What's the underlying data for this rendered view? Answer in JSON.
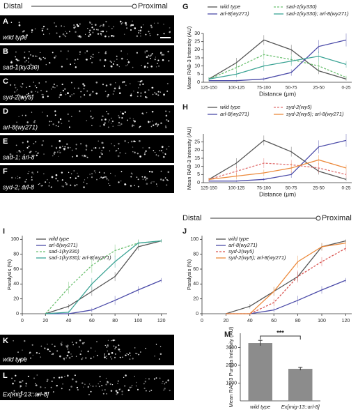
{
  "top_scale": {
    "distal": "Distal",
    "proximal": "Proximal"
  },
  "micrographs": [
    {
      "letter": "A",
      "label": "wild type"
    },
    {
      "letter": "B",
      "label": "sad-1(ky330)"
    },
    {
      "letter": "C",
      "label": "syd-2(wy5)"
    },
    {
      "letter": "D",
      "label": "arl-8(wy271)"
    },
    {
      "letter": "E",
      "label": "sad-1; arl-8"
    },
    {
      "letter": "F",
      "label": "syd-2; arl-8"
    },
    {
      "letter": "K",
      "label": "wild type"
    },
    {
      "letter": "L",
      "label": "Ex[mig-13::arl-8]"
    }
  ],
  "bottom_scale": {
    "distal": "Distal",
    "proximal": "Proximal"
  },
  "chart_data": [
    {
      "type": "line",
      "panel": "G",
      "y_label": "Mean RAB-3 Intensity (AU)",
      "x_label": "Distance (μm)",
      "categories": [
        "125-150",
        "100-125",
        "75-100",
        "50-75",
        "25-50",
        "0-25"
      ],
      "ylim": [
        0,
        30
      ],
      "yticks": [
        0,
        5,
        10,
        15,
        20,
        25,
        30
      ],
      "series": [
        {
          "name": "wild type",
          "color": "#555555",
          "style": "solid",
          "values": [
            2,
            12,
            26,
            20,
            7,
            2
          ],
          "errors": [
            1,
            3,
            3,
            3,
            2,
            1
          ]
        },
        {
          "name": "sad-1(ky330)",
          "color": "#6cc070",
          "style": "dashed",
          "values": [
            2,
            9,
            17,
            14,
            10,
            3
          ],
          "errors": [
            1,
            3,
            3,
            3,
            3,
            1
          ]
        },
        {
          "name": "arl-8(wy271)",
          "color": "#4a4aa8",
          "style": "solid",
          "values": [
            1,
            1,
            2,
            6,
            22,
            26
          ],
          "errors": [
            0.5,
            0.5,
            1,
            2,
            4,
            4
          ]
        },
        {
          "name": "sad-1(ky330); arl-8(wy271)",
          "color": "#3aa394",
          "style": "solid",
          "values": [
            2,
            5,
            10,
            13,
            16,
            11
          ],
          "errors": [
            1,
            2,
            3,
            3,
            3,
            2
          ]
        }
      ]
    },
    {
      "type": "line",
      "panel": "H",
      "y_label": "Mean RAB-3 Intensity (AU)",
      "x_label": "Distance (μm)",
      "categories": [
        "125-150",
        "100-125",
        "75-100",
        "50-75",
        "25-50",
        "0-25"
      ],
      "ylim": [
        0,
        30
      ],
      "yticks": [
        0,
        5,
        10,
        15,
        20,
        25
      ],
      "series": [
        {
          "name": "wild type",
          "color": "#555555",
          "style": "solid",
          "values": [
            2,
            12,
            26,
            19,
            7,
            2
          ],
          "errors": [
            1,
            3,
            3,
            3,
            2,
            1
          ]
        },
        {
          "name": "syd-2(wy5)",
          "color": "#e07070",
          "style": "dashed",
          "values": [
            2,
            7,
            12,
            11,
            9,
            5
          ],
          "errors": [
            1,
            3,
            3,
            3,
            3,
            2
          ]
        },
        {
          "name": "arl-8(wy271)",
          "color": "#4a4aa8",
          "style": "solid",
          "values": [
            1,
            1,
            2,
            5,
            22,
            26
          ],
          "errors": [
            0.5,
            0.5,
            1,
            2,
            4,
            4
          ]
        },
        {
          "name": "syd-2(wy5); arl-8(wy271)",
          "color": "#ec8a3c",
          "style": "solid",
          "values": [
            2,
            4,
            6,
            9,
            14,
            9
          ],
          "errors": [
            1,
            2,
            2,
            3,
            3,
            2
          ]
        }
      ]
    },
    {
      "type": "line",
      "panel": "I",
      "y_label": "Paralysis (%)",
      "x": [
        20,
        40,
        60,
        80,
        100,
        120
      ],
      "xlim": [
        0,
        125
      ],
      "xticks": [
        0,
        20,
        40,
        60,
        80,
        100,
        120
      ],
      "ylim": [
        0,
        105
      ],
      "yticks": [
        0,
        20,
        40,
        60,
        80,
        100
      ],
      "series": [
        {
          "name": "wild type",
          "color": "#555555",
          "style": "solid",
          "values": [
            0,
            10,
            30,
            50,
            90,
            98
          ],
          "errors": [
            0,
            3,
            6,
            6,
            5,
            2
          ]
        },
        {
          "name": "arl-8(wy271)",
          "color": "#4a4aa8",
          "style": "solid",
          "values": [
            0,
            0,
            5,
            18,
            32,
            45
          ],
          "errors": [
            0,
            0,
            3,
            6,
            5,
            3
          ]
        },
        {
          "name": "sad-1(ky330)",
          "color": "#6cc070",
          "style": "dashed",
          "values": [
            0,
            35,
            65,
            85,
            95,
            98
          ],
          "errors": [
            0,
            8,
            10,
            8,
            5,
            2
          ]
        },
        {
          "name": "sad-1(ky330); arl-8(wy271)",
          "color": "#3aa394",
          "style": "solid",
          "values": [
            0,
            2,
            40,
            70,
            95,
            98
          ],
          "errors": [
            0,
            2,
            8,
            8,
            4,
            2
          ]
        }
      ]
    },
    {
      "type": "line",
      "panel": "J",
      "y_label": "Paralysis (%)",
      "x": [
        20,
        40,
        60,
        80,
        100,
        120
      ],
      "xlim": [
        0,
        125
      ],
      "xticks": [
        0,
        20,
        40,
        60,
        80,
        100,
        120
      ],
      "ylim": [
        0,
        105
      ],
      "yticks": [
        0,
        20,
        40,
        60,
        80,
        100
      ],
      "series": [
        {
          "name": "wild type",
          "color": "#555555",
          "style": "solid",
          "values": [
            0,
            10,
            30,
            50,
            90,
            98
          ],
          "errors": [
            0,
            3,
            6,
            6,
            5,
            2
          ]
        },
        {
          "name": "arl-8(wy271)",
          "color": "#4a4aa8",
          "style": "solid",
          "values": [
            0,
            0,
            5,
            18,
            32,
            45
          ],
          "errors": [
            0,
            0,
            3,
            6,
            5,
            3
          ]
        },
        {
          "name": "syd-2(wy5)",
          "color": "#d9534f",
          "style": "dashed",
          "values": [
            0,
            0,
            15,
            50,
            70,
            88
          ],
          "errors": [
            0,
            0,
            5,
            8,
            6,
            4
          ]
        },
        {
          "name": "syd-2(wy5); arl-8(wy271)",
          "color": "#ec8a3c",
          "style": "solid",
          "values": [
            0,
            0,
            30,
            70,
            90,
            95
          ],
          "errors": [
            0,
            0,
            6,
            8,
            5,
            3
          ]
        }
      ]
    },
    {
      "type": "bar",
      "panel": "M",
      "y_label": "Mean RAB-3 Puncta Intensity (AU)",
      "categories": [
        "wild type",
        "Ex[mig-13::arl-8]"
      ],
      "values": [
        3250,
        1800
      ],
      "errors": [
        150,
        80
      ],
      "color": "#8c8c8c",
      "ylim": [
        0,
        3800
      ],
      "yticks": [
        1000,
        2000,
        3000
      ],
      "annotation": "***"
    }
  ]
}
